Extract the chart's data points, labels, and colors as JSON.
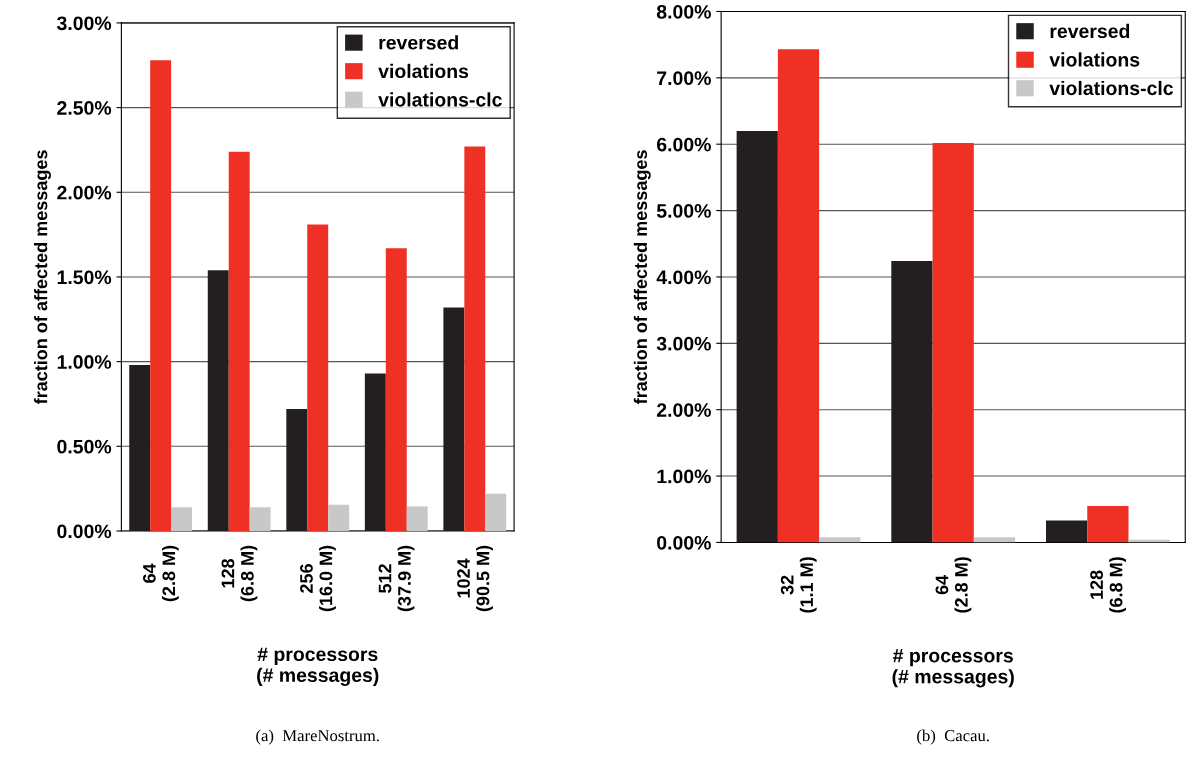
{
  "chart_data": [
    {
      "type": "bar",
      "categories": [
        "64\n(2.8 M)",
        "128\n(6.8 M)",
        "256\n(16.0 M)",
        "512\n(37.9 M)",
        "1024\n(90.5 M)"
      ],
      "xlabel": "# processors\n(# messages)",
      "ylabel": "fraction of affected messages",
      "series": [
        {
          "name": "reversed",
          "color": "#231f20",
          "values": [
            0.98,
            1.54,
            0.72,
            0.93,
            1.32
          ]
        },
        {
          "name": "violations",
          "color": "#ee3124",
          "values": [
            2.78,
            2.24,
            1.81,
            1.67,
            2.27
          ]
        },
        {
          "name": "violations-clc",
          "color": "#c8c8c8",
          "values": [
            0.14,
            0.14,
            0.155,
            0.145,
            0.22
          ]
        }
      ],
      "ylim": [
        0,
        3
      ],
      "yticks": [
        {
          "value": 0,
          "label": "0.00%"
        },
        {
          "value": 0.5,
          "label": "0.50%"
        },
        {
          "value": 1,
          "label": "1.00%"
        },
        {
          "value": 1.5,
          "label": "1.50%"
        },
        {
          "value": 2,
          "label": "2.00%"
        },
        {
          "value": 2.5,
          "label": "2.50%"
        },
        {
          "value": 3,
          "label": "3.00%"
        }
      ],
      "grid": "y",
      "legend": "top right",
      "annotations": [
        "(a)  MareNostrum."
      ]
    },
    {
      "type": "bar",
      "categories": [
        "32\n(1.1 M)",
        "64\n(2.8 M)",
        "128\n(6.8 M)"
      ],
      "xlabel": "# processors\n(# messages)",
      "ylabel": "fraction of affected messages",
      "series": [
        {
          "name": "reversed",
          "color": "#231f20",
          "values": [
            6.2,
            4.24,
            0.33
          ]
        },
        {
          "name": "violations",
          "color": "#ee3124",
          "values": [
            7.43,
            6.02,
            0.55
          ]
        },
        {
          "name": "violations-clc",
          "color": "#c8c8c8",
          "values": [
            0.08,
            0.08,
            0.04
          ]
        }
      ],
      "ylim": [
        0,
        8
      ],
      "yticks": [
        {
          "value": 0,
          "label": "0.00%"
        },
        {
          "value": 1,
          "label": "1.00%"
        },
        {
          "value": 2,
          "label": "2.00%"
        },
        {
          "value": 3,
          "label": "3.00%"
        },
        {
          "value": 4,
          "label": "4.00%"
        },
        {
          "value": 5,
          "label": "5.00%"
        },
        {
          "value": 6,
          "label": "6.00%"
        },
        {
          "value": 7,
          "label": "7.00%"
        },
        {
          "value": 8,
          "label": "8.00%"
        }
      ],
      "grid": "y",
      "legend": "top right",
      "annotations": [
        "(b)  Cacau."
      ]
    }
  ]
}
